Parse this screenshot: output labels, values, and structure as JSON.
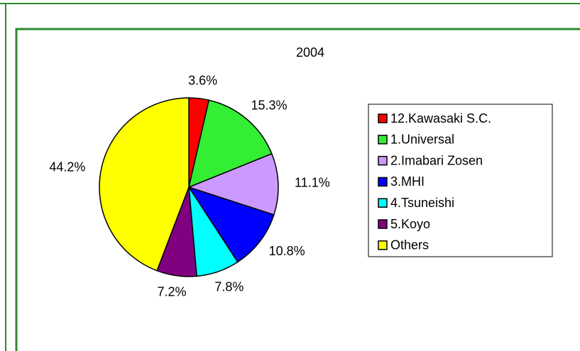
{
  "chart_data": {
    "type": "pie",
    "title": "2004",
    "categories": [
      "12.Kawasaki S.C.",
      "1.Universal",
      "2.Imabari Zosen",
      "3.MHI",
      "4.Tsuneishi",
      "5.Koyo",
      "Others"
    ],
    "values": [
      3.6,
      15.3,
      11.1,
      10.8,
      7.8,
      7.2,
      44.2
    ],
    "value_labels": [
      "3.6%",
      "15.3%",
      "11.1%",
      "10.8%",
      "7.8%",
      "7.2%",
      "44.2%"
    ],
    "colors": [
      "#ff0000",
      "#33ee33",
      "#cc99ff",
      "#0000ff",
      "#00ffff",
      "#800080",
      "#ffff00"
    ],
    "legend": "right"
  }
}
